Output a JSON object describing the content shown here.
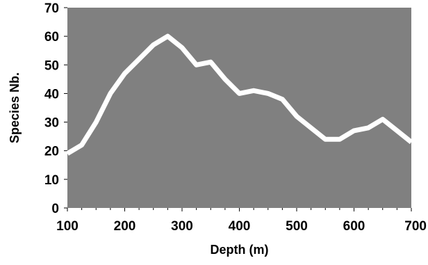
{
  "chart_data": {
    "type": "line",
    "xlabel": "Depth (m)",
    "ylabel": "Species Nb.",
    "xlim": [
      100,
      700
    ],
    "ylim": [
      0,
      70
    ],
    "x_ticks": [
      100,
      200,
      300,
      400,
      500,
      600,
      700
    ],
    "y_ticks": [
      0,
      10,
      20,
      30,
      40,
      50,
      60,
      70
    ],
    "grid": false,
    "plot_background": "#808080",
    "line_color": "#ffffff",
    "series": [
      {
        "x": [
          100,
          125,
          150,
          175,
          200,
          225,
          250,
          275,
          300,
          325,
          350,
          375,
          400,
          425,
          450,
          475,
          500,
          525,
          550,
          575,
          600,
          625,
          650,
          675,
          700
        ],
        "y": [
          19,
          22,
          30,
          40,
          47,
          52,
          57,
          60,
          56,
          50,
          51,
          45,
          40,
          41,
          40,
          38,
          32,
          28,
          24,
          24,
          27,
          28,
          31,
          27,
          23
        ]
      }
    ]
  }
}
